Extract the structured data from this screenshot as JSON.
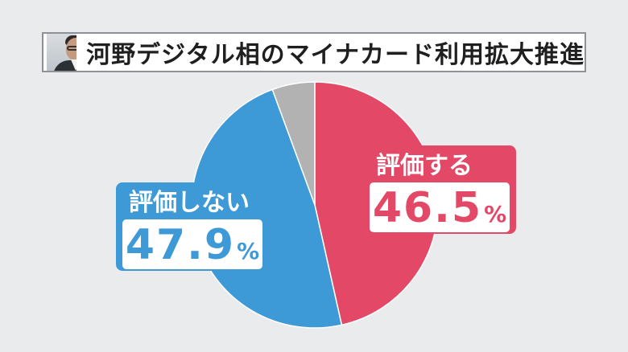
{
  "header": {
    "title": "河野デジタル相のマイナカード利用拡大推進"
  },
  "colors": {
    "background": "#e9ebed",
    "support": "#e34866",
    "oppose": "#3e9ad6",
    "other": "#b2b2b2"
  },
  "chart_data": {
    "type": "pie",
    "title": "河野デジタル相のマイナカード利用拡大推進",
    "slices": [
      {
        "label": "評価する",
        "value": 46.5,
        "value_text": "46.5",
        "unit": "%",
        "color": "#e34866"
      },
      {
        "label": "評価しない",
        "value": 47.9,
        "value_text": "47.9",
        "unit": "%",
        "color": "#3e9ad6"
      },
      {
        "label": "",
        "value": 5.6,
        "color": "#b2b2b2"
      }
    ],
    "start": "12 o'clock",
    "direction": "clockwise"
  }
}
